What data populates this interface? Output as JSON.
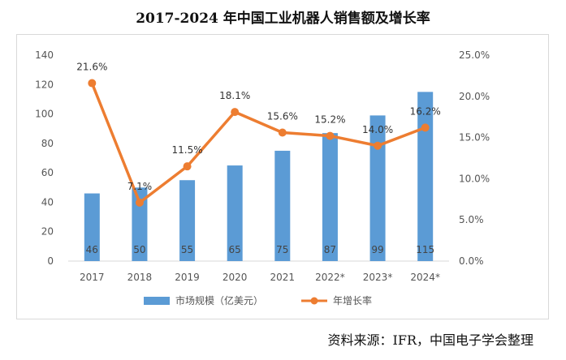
{
  "chart_data": {
    "type": "bar+line",
    "title": "2017-2024 年中国工业机器人销售额及增长率",
    "source": "资料来源：IFR，中国电子学会整理",
    "categories": [
      "2017",
      "2018",
      "2019",
      "2020",
      "2021",
      "2022*",
      "2023*",
      "2024*"
    ],
    "series": [
      {
        "name": "市场规模（亿美元）",
        "type": "bar",
        "axis": "left",
        "values": [
          46,
          50,
          55,
          65,
          75,
          87,
          99,
          115
        ],
        "labels": [
          "46",
          "50",
          "55",
          "65",
          "75",
          "87",
          "99",
          "115"
        ],
        "color": "#5B9BD5"
      },
      {
        "name": "年增长率",
        "type": "line",
        "axis": "right",
        "values": [
          21.6,
          7.1,
          11.5,
          18.1,
          15.6,
          15.2,
          14.0,
          16.2
        ],
        "labels": [
          "21.6%",
          "7.1%",
          "11.5%",
          "18.1%",
          "15.6%",
          "15.2%",
          "14.0%",
          "16.2%"
        ],
        "color": "#ED7D31"
      }
    ],
    "y_left": {
      "min": 0,
      "max": 140,
      "ticks": [
        0,
        20,
        40,
        60,
        80,
        100,
        120,
        140
      ],
      "tick_labels": [
        "0",
        "20",
        "40",
        "60",
        "80",
        "100",
        "120",
        "140"
      ]
    },
    "y_right": {
      "min": 0,
      "max": 25,
      "ticks": [
        0,
        5,
        10,
        15,
        20,
        25
      ],
      "tick_labels": [
        "0.0%",
        "5.0%",
        "10.0%",
        "15.0%",
        "20.0%",
        "25.0%"
      ]
    },
    "grid": false,
    "legend_position": "bottom"
  }
}
